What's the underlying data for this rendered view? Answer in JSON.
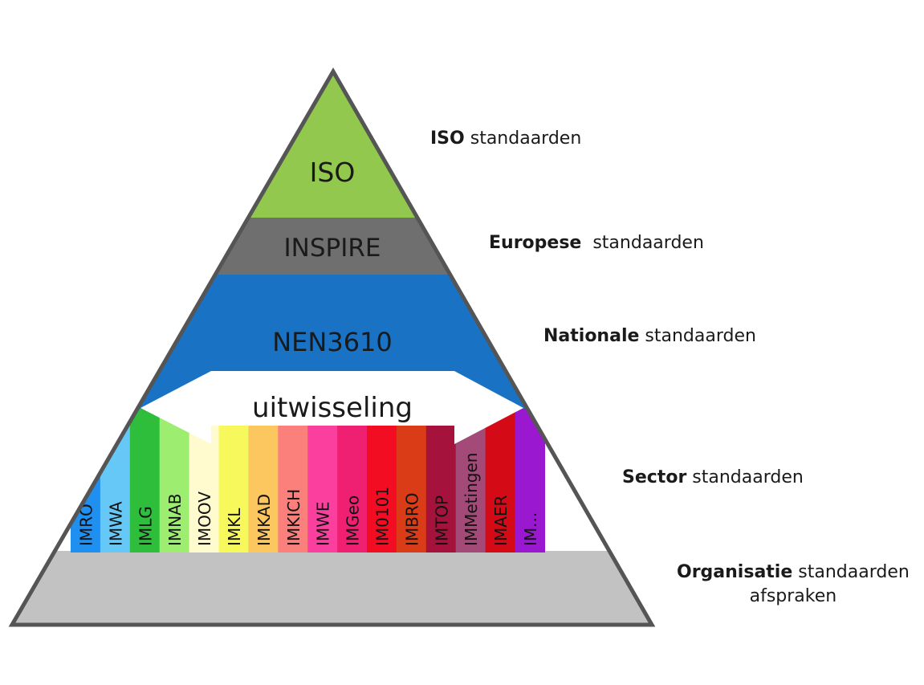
{
  "pyramid": {
    "iso": "ISO",
    "inspire": "INSPIRE",
    "nen": "NEN3610",
    "exchange": "uitwisseling",
    "sector_models": [
      {
        "label": "IMRO",
        "color": "#1f8ff0"
      },
      {
        "label": "IMWA",
        "color": "#66c8f7"
      },
      {
        "label": "IMLG",
        "color": "#2fbd3c"
      },
      {
        "label": "IMNAB",
        "color": "#9ded70"
      },
      {
        "label": "IMOOV",
        "color": "#fffbcf"
      },
      {
        "label": "IMKL",
        "color": "#f6f85c"
      },
      {
        "label": "IMKAD",
        "color": "#fcc75f"
      },
      {
        "label": "IMKICH",
        "color": "#fb7f7b"
      },
      {
        "label": "IMWE",
        "color": "#fa3f9f"
      },
      {
        "label": "IMGeo",
        "color": "#ef1f72"
      },
      {
        "label": "IM0101",
        "color": "#f30d23"
      },
      {
        "label": "IMBRO",
        "color": "#d93c17"
      },
      {
        "label": "IMTOP",
        "color": "#a5123b"
      },
      {
        "label": "IMMetingen",
        "color": "#a44a78"
      },
      {
        "label": "IMAER",
        "color": "#d40a16"
      },
      {
        "label": "IM...",
        "color": "#9a18cf"
      }
    ],
    "colors": {
      "iso": "#92c84e",
      "inspire": "#6f6f6f",
      "nen": "#1a72c4",
      "base": "#c2c2c2",
      "outline": "#555555"
    }
  },
  "levels": {
    "iso": {
      "bold": "ISO",
      "rest": "standaarden"
    },
    "eu": {
      "bold": "Europese",
      "rest": "standaarden"
    },
    "nat": {
      "bold": "Nationale",
      "rest": "standaarden"
    },
    "sector": {
      "bold": "Sector",
      "rest": "standaarden"
    },
    "org": {
      "bold": "Organisatie",
      "rest": "standaarden",
      "line2": "afspraken"
    }
  }
}
